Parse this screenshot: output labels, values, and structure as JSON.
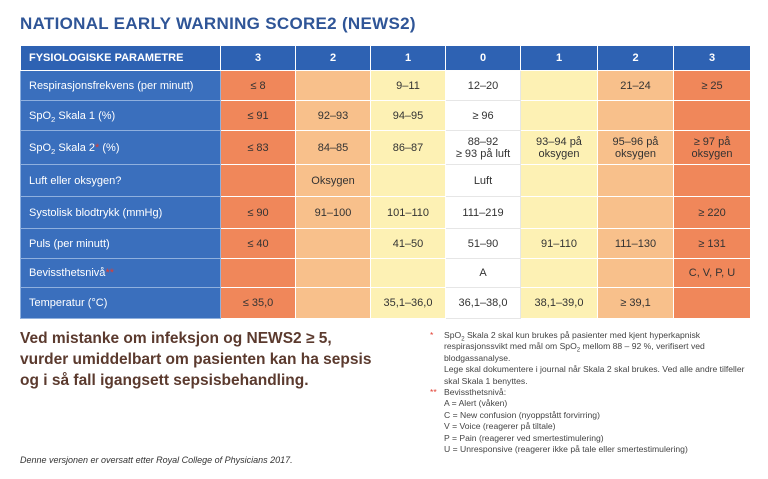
{
  "title": "NATIONAL EARLY WARNING SCORE2 (NEWS2)",
  "table": {
    "header": [
      "FYSIOLOGISKE PARAMETRE",
      "3",
      "2",
      "1",
      "0",
      "1",
      "2",
      "3"
    ],
    "rows": [
      {
        "label": [
          {
            "t": "Respirasjonsfrekvens (per minutt)"
          }
        ],
        "cells": [
          "≤ 8",
          null,
          "9–11",
          "12–20",
          null,
          "21–24",
          "≥ 25"
        ]
      },
      {
        "label": [
          {
            "t": "SpO"
          },
          {
            "sub": "2"
          },
          {
            "t": " Skala 1 (%)"
          }
        ],
        "cells": [
          "≤ 91",
          "92–93",
          "94–95",
          "≥ 96",
          null,
          null,
          null
        ]
      },
      {
        "label": [
          {
            "t": "SpO"
          },
          {
            "sub": "2"
          },
          {
            "t": " Skala 2"
          },
          {
            "note": "*"
          },
          {
            "t": " (%)"
          }
        ],
        "cells": [
          "≤ 83",
          "84–85",
          "86–87",
          "88–92\n≥ 93 på luft",
          "93–94 på\noksygen",
          "95–96 på\noksygen",
          "≥ 97 på\noksygen"
        ]
      },
      {
        "label": [
          {
            "t": "Luft eller oksygen?"
          }
        ],
        "cells": [
          null,
          "Oksygen",
          null,
          "Luft",
          null,
          null,
          null
        ]
      },
      {
        "label": [
          {
            "t": "Systolisk blodtrykk (mmHg)"
          }
        ],
        "cells": [
          "≤ 90",
          "91–100",
          "101–110",
          "111–219",
          null,
          null,
          "≥ 220"
        ]
      },
      {
        "label": [
          {
            "t": "Puls (per minutt)"
          }
        ],
        "cells": [
          "≤ 40",
          null,
          "41–50",
          "51–90",
          "91–110",
          "111–130",
          "≥ 131"
        ]
      },
      {
        "label": [
          {
            "t": "Bevissthetsnivå"
          },
          {
            "note": "**"
          }
        ],
        "cells": [
          null,
          null,
          null,
          "A",
          null,
          null,
          "C, V, P, U"
        ]
      },
      {
        "label": [
          {
            "t": "Temperatur (°C)"
          }
        ],
        "cells": [
          "≤ 35,0",
          null,
          "35,1–36,0",
          "36,1–38,0",
          "38,1–39,0",
          "≥ 39,1",
          null
        ]
      }
    ]
  },
  "warning": [
    "Ved mistanke om infeksjon og NEWS2 ≥ 5,",
    "vurder umiddelbart om pasienten kan ha sepsis",
    "og i så fall igangsett sepsisbehandling."
  ],
  "source": "Denne versjonen er oversatt etter Royal College of Physicians 2017.",
  "notes": {
    "spo2": {
      "marker": "*",
      "parts": [
        {
          "t": "SpO"
        },
        {
          "sub": "2"
        },
        {
          "t": " Skala 2 skal kun brukes på pasienter med kjent hyperkapnisk respirasjonssvikt med mål om SpO"
        },
        {
          "sub": "2"
        },
        {
          "t": " mellom 88 – 92 %, verifisert ved blodgassanalyse."
        }
      ]
    },
    "journal": "Lege skal dokumentere i journal når Skala 2 skal brukes. Ved alle andre tilfeller skal Skala 1 benyttes.",
    "consciousness": {
      "marker": "**",
      "heading": "Bevissthetsnivå:",
      "items": [
        "A = Alert (våken)",
        "C = New confusion (nyoppstått forvirring)",
        "V = Voice (reagerer på tiltale)",
        "P = Pain (reagerer ved smertestimulering)",
        "U = Unresponsive (reagerer ikke på tale eller smertestimulering)"
      ]
    }
  }
}
